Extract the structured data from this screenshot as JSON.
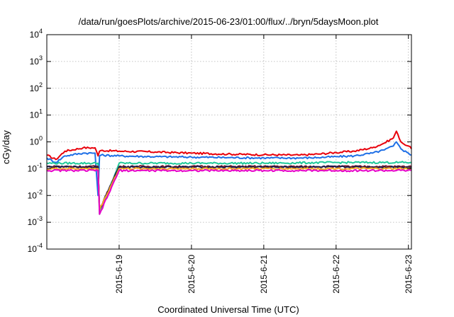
{
  "chart_data": {
    "type": "line",
    "title": "/data/run/goesPlots/archive/2015-06-23/01:00/flux/../bryn/5daysMoon.plot",
    "xlabel": "Coordinated Universal Time (UTC)",
    "ylabel": "cGy/day",
    "y_scale": "log",
    "ylim": [
      0.0001,
      10000
    ],
    "y_ticks": [
      {
        "value": 0.0001,
        "base": "10",
        "exp": "-4"
      },
      {
        "value": 0.001,
        "base": "10",
        "exp": "-3"
      },
      {
        "value": 0.01,
        "base": "10",
        "exp": "-2"
      },
      {
        "value": 0.1,
        "base": "10",
        "exp": "-1"
      },
      {
        "value": 1,
        "base": "10",
        "exp": "0"
      },
      {
        "value": 10,
        "base": "10",
        "exp": "1"
      },
      {
        "value": 100,
        "base": "10",
        "exp": "2"
      },
      {
        "value": 1000,
        "base": "10",
        "exp": "3"
      },
      {
        "value": 10000,
        "base": "10",
        "exp": "4"
      }
    ],
    "xlim": [
      "2015-06-18 00:00",
      "2015-06-23 01:00"
    ],
    "x_ticks": [
      "2015-6-19",
      "2015-6-20",
      "2015-6-21",
      "2015-6-22",
      "2015-6-23"
    ],
    "grid": true,
    "series": [
      {
        "color": "#e8000b",
        "x": [
          "2015-06-18 00:00",
          "2015-06-18 03:00",
          "2015-06-18 06:00",
          "2015-06-18 12:00",
          "2015-06-18 16:00",
          "2015-06-18 17:00",
          "2015-06-18 17:30",
          "2015-06-18 18:00",
          "2015-06-19 00:00",
          "2015-06-19 12:00",
          "2015-06-20 00:00",
          "2015-06-20 12:00",
          "2015-06-21 00:00",
          "2015-06-21 12:00",
          "2015-06-21 18:00",
          "2015-06-22 00:00",
          "2015-06-22 06:00",
          "2015-06-22 12:00",
          "2015-06-22 16:00",
          "2015-06-22 19:00",
          "2015-06-22 20:00",
          "2015-06-22 21:00",
          "2015-06-22 22:00",
          "2015-06-23 00:00",
          "2015-06-23 01:00"
        ],
        "values": [
          0.32,
          0.22,
          0.45,
          0.6,
          0.6,
          0.3,
          0.45,
          0.48,
          0.45,
          0.42,
          0.38,
          0.35,
          0.33,
          0.32,
          0.35,
          0.4,
          0.45,
          0.6,
          0.9,
          1.4,
          2.5,
          1.3,
          0.9,
          0.7,
          0.55
        ]
      },
      {
        "color": "#1e6fe6",
        "x": [
          "2015-06-18 00:00",
          "2015-06-18 03:00",
          "2015-06-18 06:00",
          "2015-06-18 12:00",
          "2015-06-18 16:00",
          "2015-06-18 17:00",
          "2015-06-18 17:30",
          "2015-06-18 18:00",
          "2015-06-19 00:00",
          "2015-06-19 12:00",
          "2015-06-20 00:00",
          "2015-06-20 12:00",
          "2015-06-21 00:00",
          "2015-06-21 12:00",
          "2015-06-21 18:00",
          "2015-06-22 00:00",
          "2015-06-22 06:00",
          "2015-06-22 12:00",
          "2015-06-22 16:00",
          "2015-06-22 19:00",
          "2015-06-22 20:00",
          "2015-06-22 21:00",
          "2015-06-22 22:00",
          "2015-06-23 00:00",
          "2015-06-23 01:00"
        ],
        "values": [
          0.25,
          0.17,
          0.3,
          0.38,
          0.38,
          0.01,
          0.3,
          0.32,
          0.3,
          0.28,
          0.27,
          0.26,
          0.25,
          0.25,
          0.26,
          0.28,
          0.3,
          0.38,
          0.5,
          0.7,
          1.0,
          0.7,
          0.5,
          0.38,
          0.32
        ]
      },
      {
        "color": "#1fc99a",
        "x": [
          "2015-06-18 00:00",
          "2015-06-18 17:00",
          "2015-06-18 17:30",
          "2015-06-19 00:00",
          "2015-06-20 00:00",
          "2015-06-21 00:00",
          "2015-06-22 00:00",
          "2015-06-23 01:00"
        ],
        "values": [
          0.16,
          0.16,
          0.002,
          0.16,
          0.16,
          0.16,
          0.17,
          0.17
        ]
      },
      {
        "color": "#7b1a2b",
        "x": [
          "2015-06-18 00:00",
          "2015-06-18 17:00",
          "2015-06-18 17:30",
          "2015-06-19 00:00",
          "2015-06-20 00:00",
          "2015-06-21 00:00",
          "2015-06-22 00:00",
          "2015-06-23 01:00"
        ],
        "values": [
          0.12,
          0.12,
          0.003,
          0.12,
          0.12,
          0.12,
          0.12,
          0.12
        ]
      },
      {
        "color": "#1a1a4a",
        "x": [
          "2015-06-18 00:00",
          "2015-06-18 17:00",
          "2015-06-18 17:30",
          "2015-06-19 00:00",
          "2015-06-20 00:00",
          "2015-06-21 00:00",
          "2015-06-22 00:00",
          "2015-06-23 01:00"
        ],
        "values": [
          0.115,
          0.115,
          0.003,
          0.115,
          0.115,
          0.115,
          0.115,
          0.115
        ]
      },
      {
        "color": "#f5a623",
        "x": [
          "2015-06-18 00:00",
          "2015-06-18 17:00",
          "2015-06-18 17:30",
          "2015-06-19 00:00",
          "2015-06-20 00:00",
          "2015-06-21 00:00",
          "2015-06-22 00:00",
          "2015-06-23 01:00"
        ],
        "values": [
          0.1,
          0.1,
          0.003,
          0.1,
          0.1,
          0.1,
          0.1,
          0.1
        ]
      },
      {
        "color": "#e600c8",
        "x": [
          "2015-06-18 00:00",
          "2015-06-18 17:00",
          "2015-06-18 17:30",
          "2015-06-19 00:00",
          "2015-06-20 00:00",
          "2015-06-21 00:00",
          "2015-06-22 00:00",
          "2015-06-23 01:00"
        ],
        "values": [
          0.085,
          0.085,
          0.002,
          0.085,
          0.085,
          0.085,
          0.085,
          0.085
        ]
      }
    ]
  }
}
